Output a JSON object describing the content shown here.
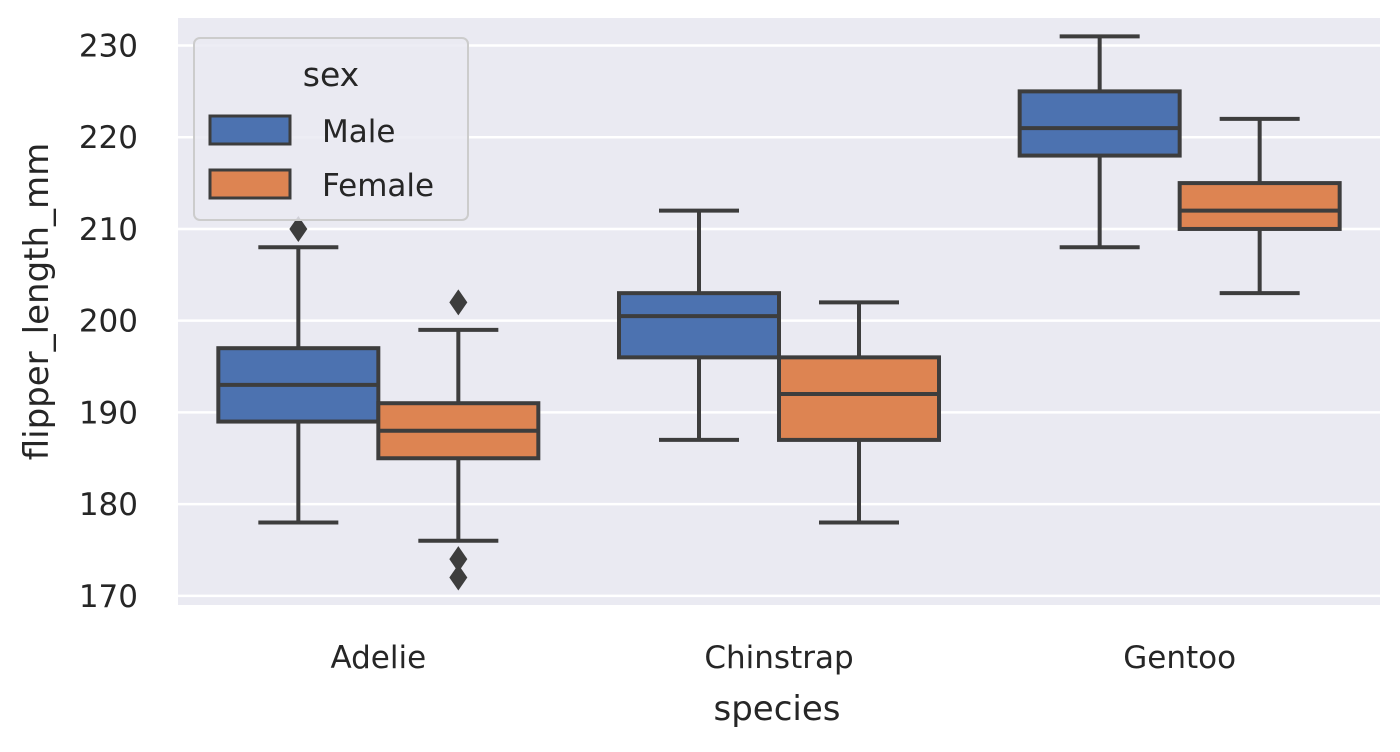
{
  "chart_data": {
    "type": "box",
    "title": "",
    "xlabel": "species",
    "ylabel": "flipper_length_mm",
    "categories": [
      "Adelie",
      "Chinstrap",
      "Gentoo"
    ],
    "ylim": [
      169,
      233
    ],
    "yticks": [
      170,
      180,
      190,
      200,
      210,
      220,
      230
    ],
    "grid": true,
    "legend": {
      "title": "sex",
      "placement": "top-left"
    },
    "series": [
      {
        "name": "Male",
        "color": "#4c72b0",
        "boxes": [
          {
            "category": "Adelie",
            "whisker_low": 178,
            "q1": 189,
            "median": 193,
            "q3": 197,
            "whisker_high": 208,
            "outliers": [
              210
            ]
          },
          {
            "category": "Chinstrap",
            "whisker_low": 187,
            "q1": 196,
            "median": 200.5,
            "q3": 203,
            "whisker_high": 212,
            "outliers": []
          },
          {
            "category": "Gentoo",
            "whisker_low": 208,
            "q1": 218,
            "median": 221,
            "q3": 225,
            "whisker_high": 231,
            "outliers": []
          }
        ]
      },
      {
        "name": "Female",
        "color": "#dd8452",
        "boxes": [
          {
            "category": "Adelie",
            "whisker_low": 176,
            "q1": 185,
            "median": 188,
            "q3": 191,
            "whisker_high": 199,
            "outliers": [
              202,
              174,
              172
            ]
          },
          {
            "category": "Chinstrap",
            "whisker_low": 178,
            "q1": 187,
            "median": 192,
            "q3": 196,
            "whisker_high": 202,
            "outliers": []
          },
          {
            "category": "Gentoo",
            "whisker_low": 203,
            "q1": 210,
            "median": 212,
            "q3": 215,
            "whisker_high": 222,
            "outliers": []
          }
        ]
      }
    ]
  }
}
